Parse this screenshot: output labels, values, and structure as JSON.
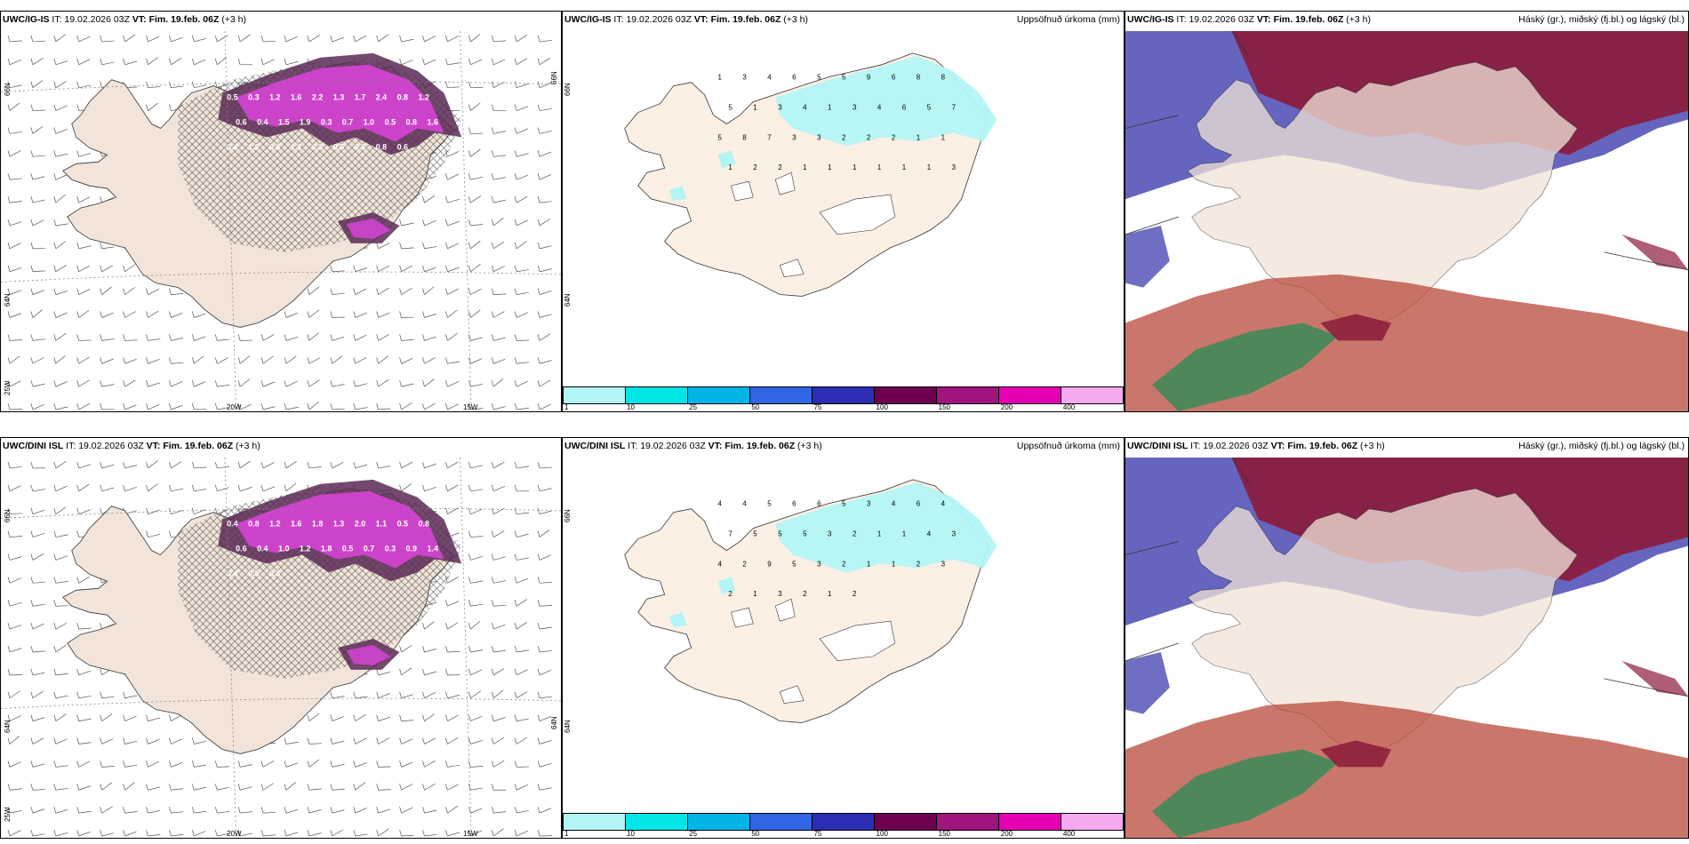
{
  "panels": [
    {
      "model": "UWC/IG-IS",
      "it_label": "IT:",
      "it_value": "19.02.2026 03Z",
      "vt_label": "VT:",
      "vt_value": "Fim. 19.feb. 06Z",
      "lead": "(+3 h)",
      "product": ""
    },
    {
      "model": "UWC/IG-IS",
      "it_label": "IT:",
      "it_value": "19.02.2026 03Z",
      "vt_label": "VT:",
      "vt_value": "Fim. 19.feb. 06Z",
      "lead": "(+3 h)",
      "product": "Uppsöfnuð úrkoma (mm)"
    },
    {
      "model": "UWC/IG-IS",
      "it_label": "IT:",
      "it_value": "19.02.2026 03Z",
      "vt_label": "VT:",
      "vt_value": "Fim. 19.feb. 06Z",
      "lead": "(+3 h)",
      "product": "Háský (gr.), miðský (fj.bl.) og lágský (bl.)"
    },
    {
      "model": "UWC/DINI ISL",
      "it_label": "IT:",
      "it_value": "19.02.2026 03Z",
      "vt_label": "VT:",
      "vt_value": "Fim. 19.feb. 06Z",
      "lead": "(+3 h)",
      "product": ""
    },
    {
      "model": "UWC/DINI ISL",
      "it_label": "IT:",
      "it_value": "19.02.2026 03Z",
      "vt_label": "VT:",
      "vt_value": "Fim. 19.feb. 06Z",
      "lead": "(+3 h)",
      "product": "Uppsöfnuð úrkoma (mm)"
    },
    {
      "model": "UWC/DINI ISL",
      "it_label": "IT:",
      "it_value": "19.02.2026 03Z",
      "vt_label": "VT:",
      "vt_value": "Fim. 19.feb. 06Z",
      "lead": "(+3 h)",
      "product": "Háský (gr.), miðský (fj.bl.) og lágský (bl.)"
    }
  ],
  "grid_labels": {
    "lat_66": "66N",
    "lat_64": "64N",
    "lon_25": "25W",
    "lon_20": "20W",
    "lon_15": "15W",
    "lat_66_right": "66N",
    "lat_64_right": "64N"
  },
  "colorbar": {
    "colors": [
      "#b3f5f5",
      "#00e6e6",
      "#00b4e6",
      "#3264e6",
      "#2d2db4",
      "#6e0050",
      "#a0147d",
      "#e600b4",
      "#f5aaf0"
    ],
    "labels": [
      "1",
      "10",
      "25",
      "50",
      "75",
      "100",
      "150",
      "200",
      "400"
    ]
  },
  "precip_numbers_top": [
    "1",
    "3",
    "4",
    "6",
    "5",
    "5",
    "9",
    "6",
    "8",
    "8",
    "5",
    "1",
    "3",
    "4",
    "1",
    "3",
    "4",
    "6",
    "5",
    "7",
    "5",
    "8",
    "7",
    "3",
    "3",
    "2",
    "2",
    "2",
    "1",
    "1",
    "1",
    "2",
    "2",
    "1",
    "1",
    "1",
    "1",
    "1",
    "1",
    "3"
  ],
  "precip_numbers_bottom": [
    "4",
    "4",
    "5",
    "6",
    "6",
    "5",
    "3",
    "4",
    "6",
    "4",
    "7",
    "5",
    "5",
    "5",
    "3",
    "2",
    "1",
    "1",
    "4",
    "3",
    "4",
    "2",
    "9",
    "5",
    "3",
    "2",
    "1",
    "1",
    "2",
    "3",
    "2",
    "1",
    "3",
    "2",
    "1",
    "2"
  ],
  "snow_values_top": [
    "0.5",
    "0.3",
    "1.2",
    "1.6",
    "2.2",
    "1.3",
    "1.7",
    "2.4",
    "0.8",
    "1.2",
    "0.6",
    "0.4",
    "1.5",
    "1.9",
    "0.3",
    "0.7",
    "1.0",
    "0.5",
    "0.8",
    "1.6",
    "0.4",
    "1.2",
    "0.8",
    "1.1",
    "0.3",
    "0.5",
    "0.3",
    "0.8",
    "0.6"
  ],
  "snow_values_bottom": [
    "0.4",
    "0.8",
    "1.2",
    "1.6",
    "1.8",
    "1.3",
    "2.0",
    "1.1",
    "0.5",
    "0.8",
    "0.6",
    "0.4",
    "1.0",
    "1.2",
    "1.8",
    "0.5",
    "0.7",
    "0.3",
    "0.9",
    "1.4",
    "0.4",
    "0.5",
    "0.3"
  ],
  "colors": {
    "land": "#f2e4d8",
    "land_precip": "#fcefe4",
    "snow_magenta": "#dd44dd",
    "snow_dark": "#5a2a55",
    "precip_light": "#b3f5f5",
    "cloud_high": "#8b1a3a",
    "cloud_mid": "#4a4ab4",
    "cloud_low": "#2e8b57"
  }
}
